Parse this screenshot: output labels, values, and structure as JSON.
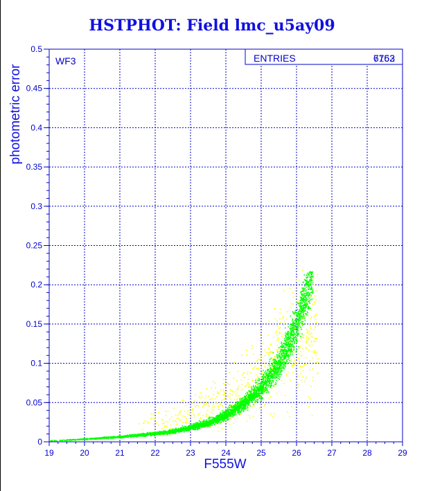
{
  "chart_data": {
    "type": "scatter",
    "title": "HSTPHOT: Field lmc_u5ay09",
    "xlabel": "F555W",
    "ylabel": "photometric error",
    "xlim": [
      19,
      29
    ],
    "ylim": [
      0,
      0.5
    ],
    "x_ticks": [
      "19",
      "20",
      "21",
      "22",
      "23",
      "24",
      "25",
      "26",
      "27",
      "28",
      "29"
    ],
    "y_ticks": [
      "0",
      "0.05",
      "0.1",
      "0.15",
      "0.2",
      "0.25",
      "0.3",
      "0.35",
      "0.4",
      "0.45",
      "0.5"
    ],
    "grid": true,
    "panel_label": "WF3",
    "stats_box": {
      "label": "ENTRIES",
      "values": [
        "6763",
        "7152"
      ],
      "placement": "top-right"
    },
    "series": [
      {
        "color": "#00ff00",
        "x_range": [
          19.0,
          26.45
        ],
        "trend": [
          [
            19.0,
            0.002
          ],
          [
            20.0,
            0.004
          ],
          [
            21.0,
            0.007
          ],
          [
            22.0,
            0.011
          ],
          [
            22.5,
            0.014
          ],
          [
            23.0,
            0.019
          ],
          [
            23.5,
            0.025
          ],
          [
            24.0,
            0.035
          ],
          [
            24.5,
            0.05
          ],
          [
            25.0,
            0.07
          ],
          [
            25.5,
            0.1
          ],
          [
            26.0,
            0.15
          ],
          [
            26.4,
            0.21
          ]
        ]
      },
      {
        "color": "#ffff00",
        "x_range": [
          21.5,
          26.6
        ],
        "trend": [
          [
            21.5,
            0.02
          ],
          [
            22.0,
            0.025
          ],
          [
            23.0,
            0.035
          ],
          [
            24.0,
            0.05
          ],
          [
            25.0,
            0.08
          ],
          [
            26.0,
            0.15
          ]
        ]
      }
    ],
    "axis_color": "#0000cc",
    "grid_color": "#0000cc"
  }
}
